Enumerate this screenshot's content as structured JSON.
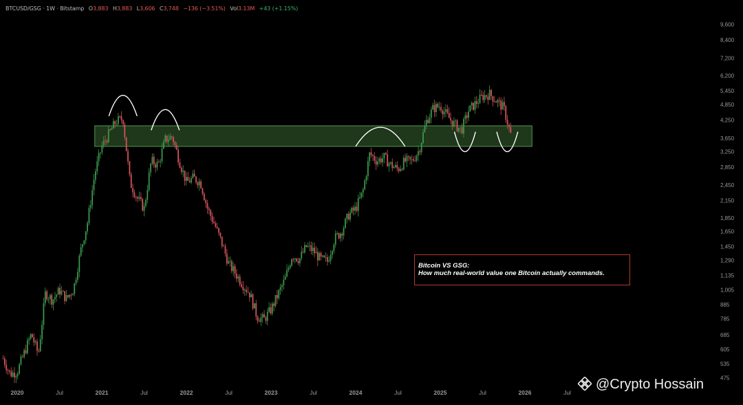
{
  "header": {
    "symbol": "BTCUSD/GSG · 1W · Bitstamp",
    "o_label": "O",
    "o_value": "3,883",
    "h_label": "H",
    "h_value": "3,883",
    "l_label": "L",
    "l_value": "3,606",
    "c_label": "C",
    "c_value": "3,748",
    "change": "−136 (−3.51%)",
    "vol_label": "Vol",
    "vol_value": "3.13M",
    "vol_change": "+43 (+1.15%)"
  },
  "note": {
    "line1": "Bitcoin VS GSG:",
    "line2": "How much real-world value one Bitcoin actually commands."
  },
  "watermark": {
    "text": "@Crypto Hossain",
    "icon": "binance-logo-icon"
  },
  "colors": {
    "background": "#000000",
    "up": "#3a9a4c",
    "down": "#d2545a",
    "zone_fill": "#2a4a24",
    "zone_border": "#4f9a4f",
    "note_border": "#b23a32",
    "header_down": "#e55a50",
    "header_up": "#3cb371"
  },
  "chart_data": {
    "type": "candlestick",
    "scale": "log",
    "ylim": [
      460,
      10200
    ],
    "y_ticks": [
      475,
      535,
      605,
      685,
      785,
      885,
      1005,
      1135,
      1290,
      1450,
      1650,
      1850,
      2150,
      2450,
      2850,
      3250,
      3650,
      4250,
      4850,
      5450,
      6200,
      7200,
      8400,
      9600
    ],
    "x_ticks": [
      {
        "date": "2020-01",
        "label": "2020"
      },
      {
        "date": "2020-07",
        "label": "Jul"
      },
      {
        "date": "2021-01",
        "label": "2021"
      },
      {
        "date": "2021-07",
        "label": "Jul"
      },
      {
        "date": "2022-01",
        "label": "2022"
      },
      {
        "date": "2022-07",
        "label": "Jul"
      },
      {
        "date": "2023-01",
        "label": "2023"
      },
      {
        "date": "2023-07",
        "label": "Jul"
      },
      {
        "date": "2024-01",
        "label": "2024"
      },
      {
        "date": "2024-07",
        "label": "Jul"
      },
      {
        "date": "2025-01",
        "label": "2025"
      },
      {
        "date": "2025-07",
        "label": "Jul"
      },
      {
        "date": "2026-01",
        "label": "2026"
      },
      {
        "date": "2026-07",
        "label": "Jul"
      }
    ],
    "close_path": [
      [
        "2019-11",
        560
      ],
      [
        "2019-12",
        490
      ],
      [
        "2020-01",
        500
      ],
      [
        "2020-03",
        690
      ],
      [
        "2020-04",
        580
      ],
      [
        "2020-05",
        980
      ],
      [
        "2020-06",
        920
      ],
      [
        "2020-07",
        1000
      ],
      [
        "2020-08",
        930
      ],
      [
        "2020-09",
        1010
      ],
      [
        "2020-10",
        1400
      ],
      [
        "2020-11",
        1800
      ],
      [
        "2020-12",
        2700
      ],
      [
        "2021-01",
        3400
      ],
      [
        "2021-03",
        4200
      ],
      [
        "2021-04",
        4300
      ],
      [
        "2021-05",
        2500
      ],
      [
        "2021-06",
        2200
      ],
      [
        "2021-07",
        2000
      ],
      [
        "2021-08",
        3000
      ],
      [
        "2021-09",
        2900
      ],
      [
        "2021-10",
        3600
      ],
      [
        "2021-11",
        3700
      ],
      [
        "2021-12",
        3000
      ],
      [
        "2022-01",
        2500
      ],
      [
        "2022-02",
        2600
      ],
      [
        "2022-03",
        2500
      ],
      [
        "2022-04",
        2000
      ],
      [
        "2022-05",
        1750
      ],
      [
        "2022-06",
        1500
      ],
      [
        "2022-07",
        1250
      ],
      [
        "2022-08",
        1150
      ],
      [
        "2022-09",
        1050
      ],
      [
        "2022-10",
        970
      ],
      [
        "2022-11",
        800
      ],
      [
        "2022-12",
        780
      ],
      [
        "2023-01",
        850
      ],
      [
        "2023-03",
        1100
      ],
      [
        "2023-04",
        1350
      ],
      [
        "2023-05",
        1300
      ],
      [
        "2023-06",
        1450
      ],
      [
        "2023-07",
        1400
      ],
      [
        "2023-08",
        1300
      ],
      [
        "2023-09",
        1280
      ],
      [
        "2023-10",
        1550
      ],
      [
        "2023-11",
        1650
      ],
      [
        "2023-12",
        1900
      ],
      [
        "2024-01",
        2000
      ],
      [
        "2024-02",
        2300
      ],
      [
        "2024-03",
        3200
      ],
      [
        "2024-04",
        3000
      ],
      [
        "2024-05",
        3100
      ],
      [
        "2024-06",
        2900
      ],
      [
        "2024-07",
        2800
      ],
      [
        "2024-08",
        3000
      ],
      [
        "2024-09",
        3000
      ],
      [
        "2024-10",
        3300
      ],
      [
        "2024-11",
        4200
      ],
      [
        "2024-12",
        4700
      ],
      [
        "2025-01",
        4800
      ],
      [
        "2025-02",
        4400
      ],
      [
        "2025-03",
        4100
      ],
      [
        "2025-04",
        3900
      ],
      [
        "2025-05",
        4600
      ],
      [
        "2025-06",
        4900
      ],
      [
        "2025-07",
        5200
      ],
      [
        "2025-08",
        5300
      ],
      [
        "2025-09",
        5000
      ],
      [
        "2025-10",
        4700
      ],
      [
        "2025-11",
        3750
      ]
    ],
    "annotations": [
      {
        "type": "zone",
        "from": "2020-12",
        "to": "2026-02",
        "y": [
          3400,
          4050
        ]
      },
      {
        "type": "arc",
        "kind": "top",
        "from": "2021-02",
        "to": "2021-06",
        "y_base": 4400,
        "y_peak": 5250
      },
      {
        "type": "arc",
        "kind": "top",
        "from": "2021-08",
        "to": "2021-12",
        "y_base": 3900,
        "y_peak": 4650
      },
      {
        "type": "arc",
        "kind": "top",
        "from": "2024-01",
        "to": "2024-08",
        "y_base": 3400,
        "y_peak": 4000
      },
      {
        "type": "arc",
        "kind": "bottom",
        "from": "2025-03",
        "to": "2025-06",
        "y_base": 3850,
        "y_trough": 3250
      },
      {
        "type": "arc",
        "kind": "bottom",
        "from": "2025-09",
        "to": "2025-12",
        "y_base": 3850,
        "y_trough": 3250
      }
    ]
  }
}
